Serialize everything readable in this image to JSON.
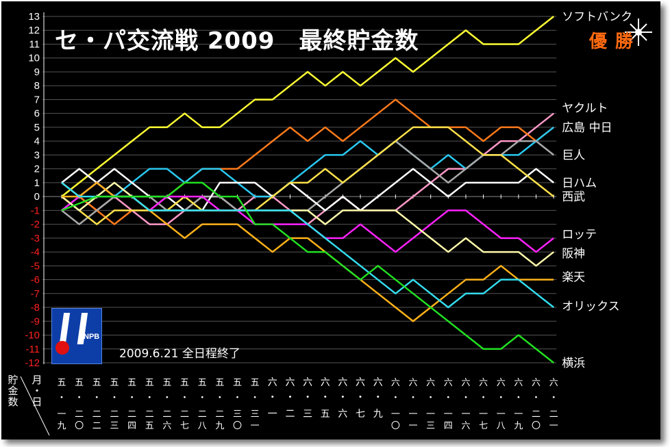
{
  "title": "セ・パ交流戦 2009　最終貯金数",
  "note": "2009.6.21 全日程終了",
  "winner_label": "優勝",
  "logo_text": "NPB",
  "y_axis_label": "貯金数",
  "x_axis_label": "月・日",
  "colors": {
    "background": "#000000",
    "grid": "#555555",
    "positive_tick": "#ffffff",
    "negative_tick": "#ff2020",
    "winner": "#ff6a10"
  },
  "chart_data": {
    "type": "line",
    "title": "セ・パ交流戦 2009　最終貯金数",
    "ylim": [
      -12,
      13
    ],
    "yticks": [
      13,
      12,
      11,
      10,
      9,
      8,
      7,
      6,
      5,
      4,
      3,
      2,
      1,
      0,
      -1,
      -2,
      -3,
      -4,
      -5,
      -6,
      -7,
      -8,
      -9,
      -10,
      -11,
      -12
    ],
    "categories": [
      "五一九",
      "五二〇",
      "五二二",
      "五二三",
      "五二四",
      "五二五",
      "五二六",
      "五二七",
      "五二八",
      "五二九",
      "五三〇",
      "五三一",
      "六一",
      "六二",
      "六三",
      "六五",
      "六六",
      "六七",
      "六九",
      "六一〇",
      "六一一",
      "六一三",
      "六一四",
      "六一六",
      "六一七",
      "六一八",
      "六一九",
      "六二〇",
      "六二一"
    ],
    "series": [
      {
        "name": "ソフトバンク",
        "color": "#ffff33",
        "values": [
          0,
          1,
          2,
          3,
          4,
          5,
          5,
          6,
          5,
          5,
          6,
          7,
          7,
          8,
          9,
          8,
          9,
          8,
          9,
          10,
          9,
          10,
          11,
          12,
          11,
          11,
          11,
          12,
          13
        ]
      },
      {
        "name": "ヤクルト",
        "color": "#ff99c8",
        "values": [
          1,
          0,
          -1,
          0,
          -1,
          -2,
          -2,
          -1,
          0,
          0,
          -1,
          0,
          0,
          -1,
          -2,
          -1,
          0,
          -1,
          -1,
          -1,
          0,
          1,
          2,
          2,
          3,
          4,
          4,
          5,
          6
        ]
      },
      {
        "name": "広島",
        "color": "#ff7a1a",
        "values": [
          1,
          0,
          -1,
          -2,
          -1,
          -1,
          0,
          1,
          2,
          2,
          2,
          3,
          4,
          5,
          4,
          5,
          4,
          5,
          6,
          7,
          6,
          5,
          5,
          5,
          4,
          5,
          5,
          4,
          5
        ]
      },
      {
        "name": "中日",
        "color": "#29c8f0",
        "values": [
          -1,
          0,
          1,
          0,
          1,
          2,
          2,
          1,
          2,
          2,
          1,
          0,
          0,
          1,
          2,
          3,
          3,
          4,
          3,
          4,
          3,
          2,
          3,
          2,
          3,
          3,
          3,
          4,
          5
        ]
      },
      {
        "name": "巨人",
        "color": "#aaaaaa",
        "values": [
          -1,
          -2,
          -1,
          0,
          0,
          0,
          -1,
          -1,
          0,
          0,
          -1,
          -1,
          -1,
          -1,
          -1,
          0,
          1,
          2,
          3,
          4,
          3,
          2,
          1,
          2,
          3,
          3,
          4,
          4,
          3
        ]
      },
      {
        "name": "日ハム",
        "color": "#ffffff",
        "values": [
          1,
          2,
          1,
          2,
          1,
          0,
          0,
          -1,
          -1,
          1,
          1,
          1,
          0,
          1,
          0,
          -1,
          0,
          -1,
          0,
          1,
          2,
          1,
          0,
          1,
          1,
          1,
          1,
          2,
          1
        ]
      },
      {
        "name": "西武",
        "color": "#ffe14a",
        "values": [
          0,
          -1,
          -2,
          -1,
          -1,
          -1,
          -1,
          0,
          -1,
          -1,
          -1,
          -1,
          0,
          1,
          1,
          2,
          1,
          2,
          3,
          4,
          5,
          5,
          5,
          4,
          3,
          3,
          2,
          1,
          0
        ]
      },
      {
        "name": "ロッテ",
        "color": "#ff22ff",
        "values": [
          -1,
          0,
          1,
          0,
          0,
          -1,
          0,
          0,
          0,
          -1,
          -1,
          -2,
          -2,
          -2,
          -2,
          -3,
          -3,
          -2,
          -3,
          -4,
          -3,
          -2,
          -1,
          -1,
          -2,
          -3,
          -3,
          -4,
          -3
        ]
      },
      {
        "name": "阪神",
        "color": "#fffaaa",
        "values": [
          0,
          -1,
          0,
          1,
          0,
          -1,
          -1,
          -1,
          -1,
          -1,
          -1,
          -1,
          -1,
          -1,
          -1,
          -2,
          -1,
          -1,
          -1,
          -1,
          -2,
          -3,
          -4,
          -3,
          -4,
          -4,
          -4,
          -5,
          -4
        ]
      },
      {
        "name": "楽天",
        "color": "#ffb21a",
        "values": [
          0,
          0,
          1,
          0,
          0,
          -1,
          -2,
          -3,
          -2,
          -2,
          -2,
          -3,
          -4,
          -3,
          -3,
          -4,
          -5,
          -6,
          -7,
          -8,
          -9,
          -8,
          -7,
          -6,
          -6,
          -5,
          -6,
          -6,
          -6
        ]
      },
      {
        "name": "オリックス",
        "color": "#33ddee",
        "values": [
          1,
          0,
          0,
          0,
          0,
          -1,
          -1,
          -1,
          -1,
          -1,
          -1,
          -1,
          -1,
          -1,
          -2,
          -3,
          -4,
          -5,
          -6,
          -7,
          -6,
          -7,
          -8,
          -7,
          -7,
          -6,
          -6,
          -7,
          -8
        ]
      },
      {
        "name": "横浜",
        "color": "#22e022",
        "values": [
          -1,
          -0.5,
          0,
          0,
          0,
          0,
          0,
          1,
          1,
          0,
          0,
          -2,
          -2,
          -3,
          -4,
          -4,
          -5,
          -6,
          -5,
          -6,
          -7,
          -8,
          -9,
          -10,
          -11,
          -11,
          -10,
          -11,
          -12
        ]
      }
    ],
    "end_labels": [
      {
        "text": "ソフトバンク",
        "y": 13
      },
      {
        "text": "ヤクルト",
        "y": 6.4
      },
      {
        "text": "広島 中日",
        "y": 5
      },
      {
        "text": "巨人",
        "y": 3
      },
      {
        "text": "日ハム",
        "y": 1
      },
      {
        "text": "西武",
        "y": 0
      },
      {
        "text": "ロッテ",
        "y": -2.7
      },
      {
        "text": "阪神",
        "y": -4.1
      },
      {
        "text": "楽天",
        "y": -5.8
      },
      {
        "text": "オリックス",
        "y": -7.9
      },
      {
        "text": "横浜",
        "y": -12
      }
    ]
  }
}
